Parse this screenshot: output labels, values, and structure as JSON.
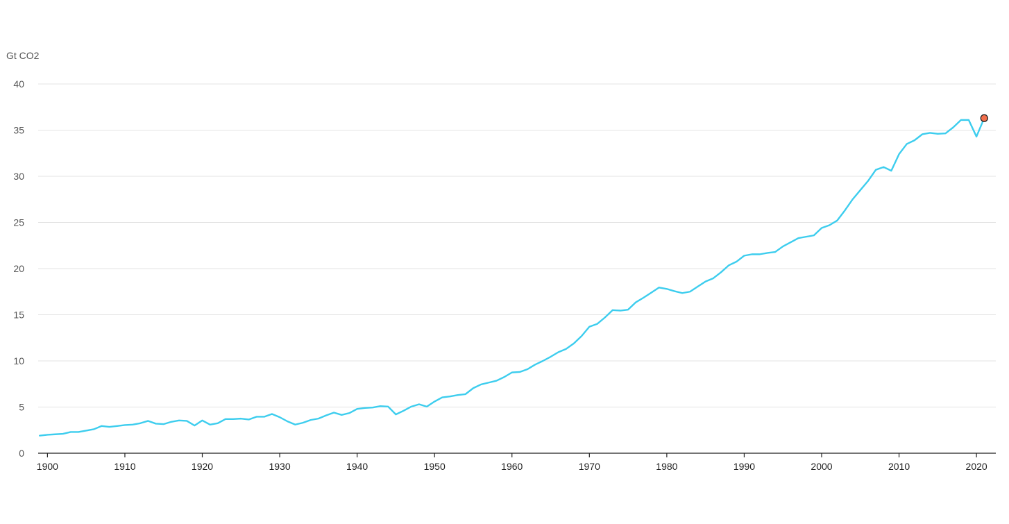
{
  "chart_data": {
    "type": "line",
    "title": "",
    "xlabel": "",
    "ylabel": "Gt CO2",
    "xlim": [
      1898.8,
      2022.5
    ],
    "ylim": [
      0,
      40
    ],
    "grid": true,
    "legend": "none",
    "x_ticks": [
      1900,
      1910,
      1920,
      1930,
      1940,
      1950,
      1960,
      1970,
      1980,
      1990,
      2000,
      2010,
      2020
    ],
    "y_ticks": [
      0,
      5,
      10,
      15,
      20,
      25,
      30,
      35,
      40
    ],
    "colors": {
      "line": "#3dcdee",
      "highlight": "#f26f4c",
      "highlight_stroke": "#222222"
    },
    "highlight_point": {
      "x": 2021,
      "y": 36.3
    },
    "series": [
      {
        "x": [
          1899,
          1900,
          1901,
          1902,
          1903,
          1904,
          1905,
          1906,
          1907,
          1908,
          1909,
          1910,
          1911,
          1912,
          1913,
          1914,
          1915,
          1916,
          1917,
          1918,
          1919,
          1920,
          1921,
          1922,
          1923,
          1924,
          1925,
          1926,
          1927,
          1928,
          1929,
          1930,
          1931,
          1932,
          1933,
          1934,
          1935,
          1936,
          1937,
          1938,
          1939,
          1940,
          1941,
          1942,
          1943,
          1944,
          1945,
          1946,
          1947,
          1948,
          1949,
          1950,
          1951,
          1952,
          1953,
          1954,
          1955,
          1956,
          1957,
          1958,
          1959,
          1960,
          1961,
          1962,
          1963,
          1964,
          1965,
          1966,
          1967,
          1968,
          1969,
          1970,
          1971,
          1972,
          1973,
          1974,
          1975,
          1976,
          1977,
          1978,
          1979,
          1980,
          1981,
          1982,
          1983,
          1984,
          1985,
          1986,
          1987,
          1988,
          1989,
          1990,
          1991,
          1992,
          1993,
          1994,
          1995,
          1996,
          1997,
          1998,
          1999,
          2000,
          2001,
          2002,
          2003,
          2004,
          2005,
          2006,
          2007,
          2008,
          2009,
          2010,
          2011,
          2012,
          2013,
          2014,
          2015,
          2016,
          2017,
          2018,
          2019,
          2020,
          2021
        ],
        "values": [
          1.9,
          2.0,
          2.05,
          2.1,
          2.3,
          2.3,
          2.45,
          2.6,
          2.95,
          2.85,
          2.95,
          3.05,
          3.1,
          3.25,
          3.5,
          3.2,
          3.15,
          3.4,
          3.55,
          3.5,
          3.0,
          3.55,
          3.1,
          3.25,
          3.7,
          3.7,
          3.75,
          3.65,
          3.95,
          3.95,
          4.25,
          3.9,
          3.45,
          3.1,
          3.3,
          3.6,
          3.75,
          4.1,
          4.4,
          4.15,
          4.35,
          4.8,
          4.9,
          4.95,
          5.1,
          5.05,
          4.2,
          4.6,
          5.05,
          5.3,
          5.05,
          5.6,
          6.05,
          6.15,
          6.3,
          6.4,
          7.05,
          7.45,
          7.65,
          7.85,
          8.25,
          8.75,
          8.8,
          9.1,
          9.6,
          10.0,
          10.45,
          10.95,
          11.3,
          11.9,
          12.7,
          13.7,
          14.0,
          14.7,
          15.5,
          15.45,
          15.55,
          16.35,
          16.85,
          17.4,
          17.95,
          17.8,
          17.55,
          17.35,
          17.5,
          18.05,
          18.6,
          18.95,
          19.6,
          20.35,
          20.75,
          21.4,
          21.55,
          21.55,
          21.7,
          21.8,
          22.4,
          22.85,
          23.3,
          23.45,
          23.6,
          24.4,
          24.7,
          25.2,
          26.3,
          27.5,
          28.5,
          29.5,
          30.7,
          31.0,
          30.6,
          32.4,
          33.5,
          33.9,
          34.55,
          34.7,
          34.6,
          34.65,
          35.3,
          36.1,
          36.1,
          34.3,
          36.3
        ]
      }
    ]
  }
}
